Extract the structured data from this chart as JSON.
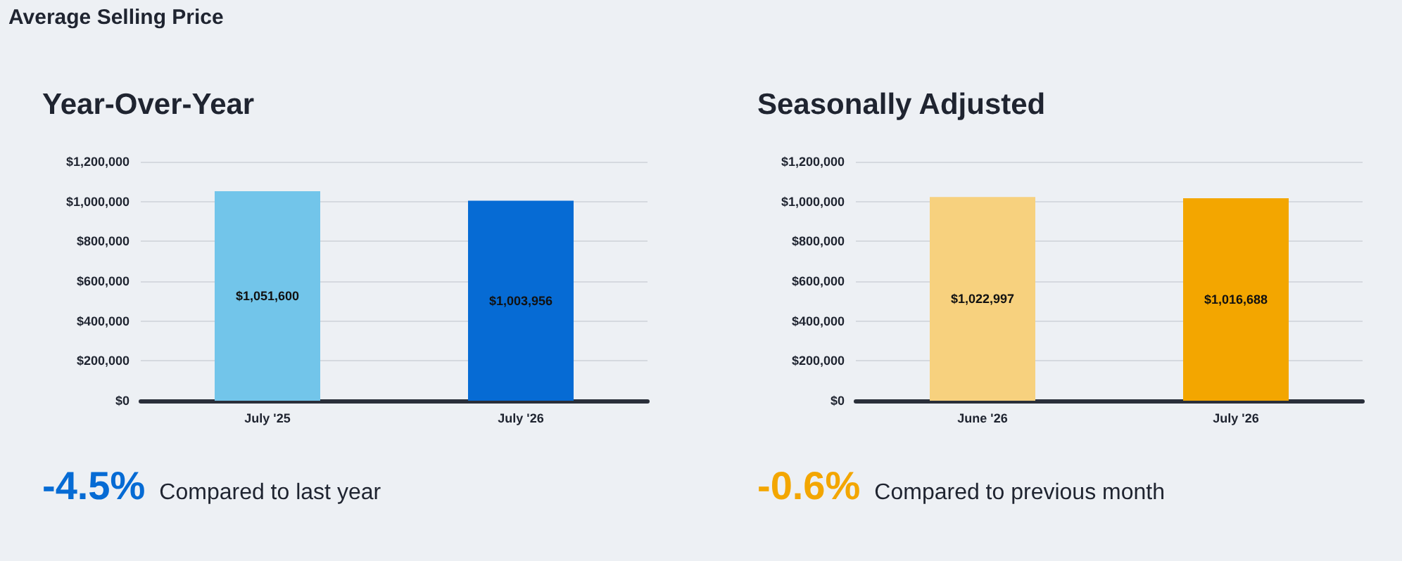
{
  "chart_data": [
    {
      "type": "other",
      "title": "Average Selling Price"
    },
    {
      "type": "bar",
      "title": "Year-Over-Year",
      "categories": [
        "July '25",
        "July '26"
      ],
      "values": [
        1051600,
        1003956
      ],
      "colors": [
        "#72c5ea",
        "#066bd4"
      ],
      "value_labels": [
        "$1,051,600",
        "$1,003,956"
      ],
      "ylim": [
        0,
        1200000
      ],
      "yticks": [
        {
          "value": 0,
          "label": "$0"
        },
        {
          "value": 200000,
          "label": "$200,000"
        },
        {
          "value": 400000,
          "label": "$400,000"
        },
        {
          "value": 600000,
          "label": "$600,000"
        },
        {
          "value": 800000,
          "label": "$800,000"
        },
        {
          "value": 1000000,
          "label": "$1,000,000"
        },
        {
          "value": 1200000,
          "label": "$1,200,000"
        }
      ],
      "grid": "y",
      "annotations": [
        "-4.5%",
        "Compared to last year"
      ]
    },
    {
      "type": "bar",
      "title": "Seasonally Adjusted",
      "categories": [
        "June '26",
        "July '26"
      ],
      "values": [
        1022997,
        1016688
      ],
      "colors": [
        "#f7d17e",
        "#f3a600"
      ],
      "value_labels": [
        "$1,022,997",
        "$1,016,688"
      ],
      "ylim": [
        0,
        1200000
      ],
      "yticks": [
        {
          "value": 0,
          "label": "$0"
        },
        {
          "value": 200000,
          "label": "$200,000"
        },
        {
          "value": 400000,
          "label": "$400,000"
        },
        {
          "value": 600000,
          "label": "$600,000"
        },
        {
          "value": 800000,
          "label": "$800,000"
        },
        {
          "value": 1000000,
          "label": "$1,000,000"
        },
        {
          "value": 1200000,
          "label": "$1,200,000"
        }
      ],
      "grid": "y",
      "annotations": [
        "-0.6%",
        "Compared to previous month"
      ]
    }
  ]
}
